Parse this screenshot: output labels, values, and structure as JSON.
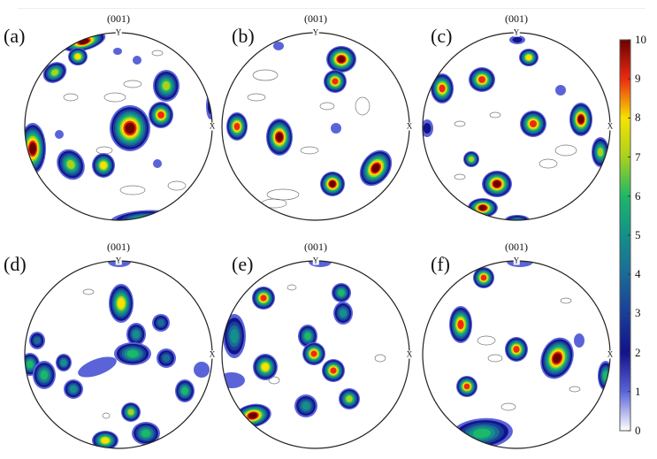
{
  "panels": [
    {
      "label": "(a)",
      "title": "(001)",
      "y_axis": "Y",
      "x_axis": "X"
    },
    {
      "label": "(b)",
      "title": "(001)",
      "y_axis": "Y",
      "x_axis": "X"
    },
    {
      "label": "(c)",
      "title": "(001)",
      "y_axis": "Y",
      "x_axis": "X"
    },
    {
      "label": "(d)",
      "title": "(001)",
      "y_axis": "Y",
      "x_axis": "X"
    },
    {
      "label": "(e)",
      "title": "(001)",
      "y_axis": "Y",
      "x_axis": "X"
    },
    {
      "label": "(f)",
      "title": "(001)",
      "y_axis": "Y",
      "x_axis": "X"
    }
  ],
  "colorbar": {
    "min": 0,
    "max": 10,
    "ticks": [
      "0",
      "1",
      "2",
      "3",
      "4",
      "5",
      "6",
      "7",
      "8",
      "9",
      "10"
    ],
    "colors": [
      "#ffffff",
      "#5a64d8",
      "#12128a",
      "#1a3e98",
      "#1a6b98",
      "#13908a",
      "#1cb868",
      "#a8d21c",
      "#f7e200",
      "#ee2a10",
      "#6e0000"
    ]
  }
}
